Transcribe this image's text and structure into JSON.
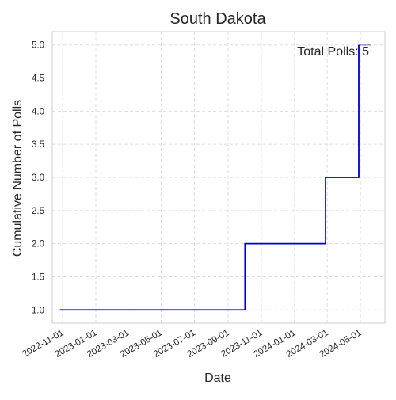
{
  "chart_data": {
    "type": "line",
    "step": true,
    "title": "South Dakota",
    "xlabel": "Date",
    "ylabel": "Cumulative Number of Polls",
    "x_tick_labels": [
      "2022-11-01",
      "2023-01-01",
      "2023-03-01",
      "2023-05-01",
      "2023-07-01",
      "2023-09-01",
      "2023-11-01",
      "2024-01-01",
      "2024-03-01",
      "2024-05-01"
    ],
    "y_ticks": [
      1.0,
      1.5,
      2.0,
      2.5,
      3.0,
      3.5,
      4.0,
      4.5,
      5.0
    ],
    "y_tick_labels": [
      "1.0",
      "1.5",
      "2.0",
      "2.5",
      "3.0",
      "3.5",
      "4.0",
      "4.5",
      "5.0"
    ],
    "xlim": [
      "2022-10-13",
      "2024-06-15"
    ],
    "ylim": [
      0.8,
      5.2
    ],
    "grid": true,
    "series": [
      {
        "x": [
          "2022-10-27",
          "2023-10-02",
          "2024-02-27",
          "2024-04-28"
        ],
        "y": [
          1,
          2,
          3,
          4
        ],
        "step_after": true,
        "final_x": "2024-05-08",
        "final_y": 5,
        "color": "#0000cd"
      }
    ],
    "annotation": {
      "text": "Total Polls: 5",
      "x": "2024-04-28",
      "y": 4.9
    },
    "colors": {
      "line": "#0000cd",
      "grid": "#dddddd",
      "axes": "#cccccc",
      "text": "#262626",
      "background": "#ffffff"
    }
  }
}
